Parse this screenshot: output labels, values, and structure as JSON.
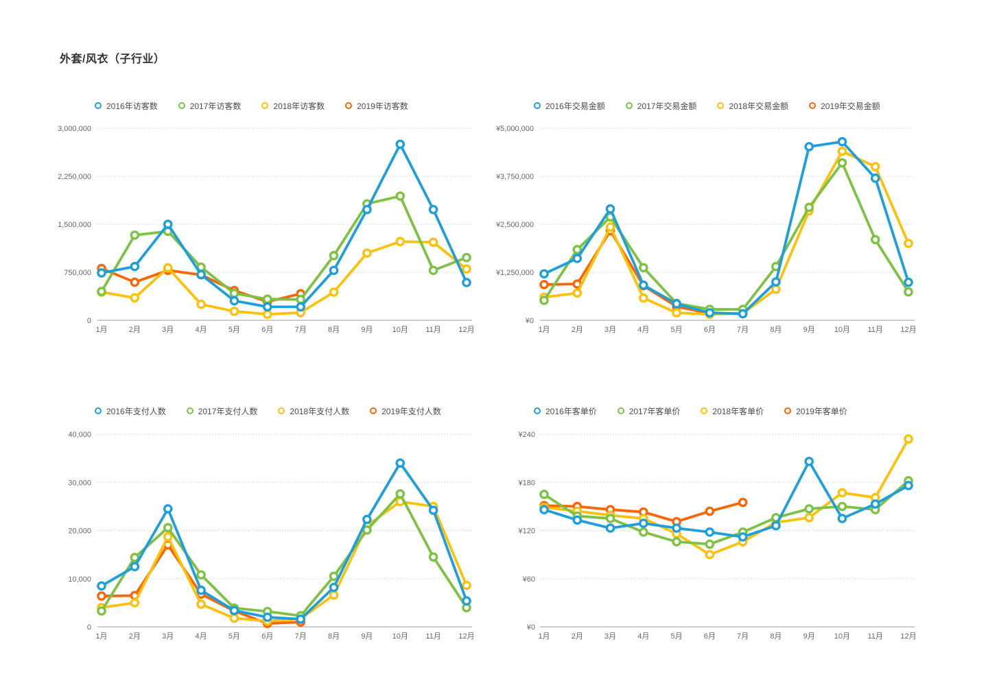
{
  "title": "外套/风衣（子行业）",
  "months": [
    "1月",
    "2月",
    "3月",
    "4月",
    "5月",
    "6月",
    "7月",
    "8月",
    "9月",
    "10月",
    "11月",
    "12月"
  ],
  "palette": {
    "2016": "#1E9FDB",
    "2017": "#7DC243",
    "2018": "#FCC10D",
    "2019": "#FA6605"
  },
  "chart_data": [
    {
      "id": "visitors",
      "type": "line",
      "metric": "访客数",
      "legend_position": "top",
      "grid": "dotted-horizontal",
      "ylim": [
        0,
        3000000
      ],
      "y_ticks": [
        "0",
        "750,000",
        "1,500,000",
        "2,250,000",
        "3,000,000"
      ],
      "categories": [
        "1月",
        "2月",
        "3月",
        "4月",
        "5月",
        "6月",
        "7月",
        "8月",
        "9月",
        "10月",
        "11月",
        "12月"
      ],
      "series": [
        {
          "name": "2016年访客数",
          "year": "2016",
          "values": [
            740000,
            840000,
            1500000,
            715000,
            305000,
            210000,
            210000,
            780000,
            1730000,
            2750000,
            1730000,
            590000
          ]
        },
        {
          "name": "2017年访客数",
          "year": "2017",
          "values": [
            450000,
            1330000,
            1390000,
            830000,
            420000,
            330000,
            325000,
            1010000,
            1820000,
            1940000,
            780000,
            980000
          ]
        },
        {
          "name": "2018年访客数",
          "year": "2018",
          "values": [
            440000,
            350000,
            820000,
            250000,
            140000,
            95000,
            120000,
            440000,
            1050000,
            1230000,
            1220000,
            800000
          ]
        },
        {
          "name": "2019年访客数",
          "year": "2019",
          "values": [
            810000,
            595000,
            780000,
            710000,
            465000,
            290000,
            415000
          ]
        }
      ]
    },
    {
      "id": "transaction-amount",
      "type": "line",
      "metric": "交易金额",
      "legend_position": "top",
      "grid": "dotted-horizontal",
      "ylim": [
        0,
        5000000
      ],
      "y_ticks": [
        "¥0",
        "¥1,250,000",
        "¥2,500,000",
        "¥3,750,000",
        "¥5,000,000"
      ],
      "categories": [
        "1月",
        "2月",
        "3月",
        "4月",
        "5月",
        "6月",
        "7月",
        "8月",
        "9月",
        "10月",
        "11月",
        "12月"
      ],
      "series": [
        {
          "name": "2016年交易金额",
          "year": "2016",
          "values": [
            1210000,
            1610000,
            2900000,
            915000,
            430000,
            195000,
            170000,
            1000000,
            4520000,
            4650000,
            3700000,
            990000
          ]
        },
        {
          "name": "2017年交易金额",
          "year": "2017",
          "values": [
            520000,
            1840000,
            2690000,
            1370000,
            440000,
            285000,
            285000,
            1400000,
            2940000,
            4100000,
            2100000,
            740000
          ]
        },
        {
          "name": "2018年交易金额",
          "year": "2018",
          "values": [
            600000,
            710000,
            2430000,
            580000,
            195000,
            155000,
            180000,
            810000,
            2850000,
            4400000,
            4000000,
            2000000
          ]
        },
        {
          "name": "2019年交易金额",
          "year": "2019",
          "values": [
            930000,
            945000,
            2330000,
            900000,
            360000,
            175000,
            170000
          ]
        }
      ]
    },
    {
      "id": "payers",
      "type": "line",
      "metric": "支付人数",
      "legend_position": "top",
      "grid": "dotted-horizontal",
      "ylim": [
        0,
        40000
      ],
      "y_ticks": [
        "0",
        "10,000",
        "20,000",
        "30,000",
        "40,000"
      ],
      "categories": [
        "1月",
        "2月",
        "3月",
        "4月",
        "5月",
        "6月",
        "7月",
        "8月",
        "9月",
        "10月",
        "11月",
        "12月"
      ],
      "series": [
        {
          "name": "2016年支付人数",
          "year": "2016",
          "values": [
            8500,
            12500,
            24500,
            7600,
            3400,
            2000,
            1600,
            8200,
            22300,
            34000,
            24200,
            5400
          ]
        },
        {
          "name": "2017年支付人数",
          "year": "2017",
          "values": [
            3300,
            14400,
            20600,
            10800,
            3900,
            3200,
            2300,
            10500,
            20100,
            27600,
            14500,
            4000
          ]
        },
        {
          "name": "2018年支付人数",
          "year": "2018",
          "values": [
            4000,
            5000,
            18700,
            4700,
            1800,
            1200,
            1700,
            6600,
            21000,
            26000,
            25000,
            8600
          ]
        },
        {
          "name": "2019年支付人数",
          "year": "2019",
          "values": [
            6400,
            6500,
            17000,
            6800,
            3300,
            700,
            1000
          ]
        }
      ]
    },
    {
      "id": "avg-order-value",
      "type": "line",
      "metric": "客单价",
      "legend_position": "top",
      "grid": "dotted-horizontal",
      "ylim": [
        0,
        240
      ],
      "y_ticks": [
        "¥0",
        "¥60",
        "¥120",
        "¥180",
        "¥240"
      ],
      "categories": [
        "1月",
        "2月",
        "3月",
        "4月",
        "5月",
        "6月",
        "7月",
        "8月",
        "9月",
        "10月",
        "11月",
        "12月"
      ],
      "series": [
        {
          "name": "2016年客单价",
          "year": "2016",
          "values": [
            146,
            133,
            123,
            129,
            123,
            118,
            112,
            126,
            206,
            135,
            153,
            176
          ]
        },
        {
          "name": "2017年客单价",
          "year": "2017",
          "values": [
            165,
            138,
            135,
            118,
            106,
            103,
            118,
            136,
            147,
            150,
            146,
            182
          ]
        },
        {
          "name": "2018年客单价",
          "year": "2018",
          "values": [
            149,
            144,
            139,
            135,
            116,
            90,
            106,
            130,
            136,
            167,
            161,
            234
          ]
        },
        {
          "name": "2019年客单价",
          "year": "2019",
          "values": [
            151,
            150,
            146,
            143,
            131,
            144,
            155
          ]
        }
      ]
    }
  ]
}
